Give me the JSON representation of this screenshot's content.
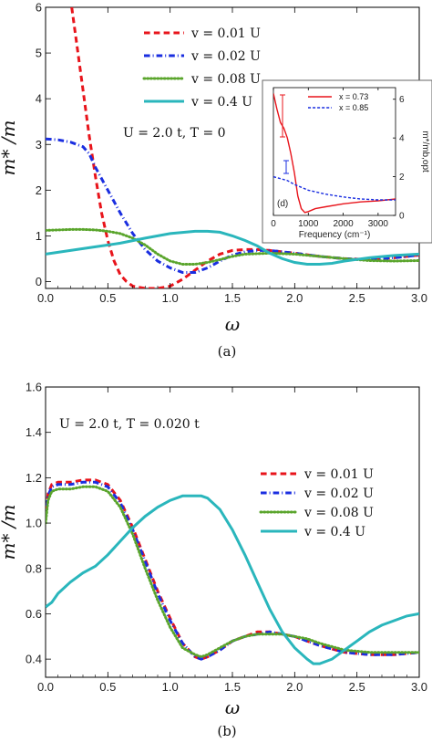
{
  "chart_data": [
    {
      "type": "line",
      "panel_label": "(a)",
      "xlabel": "ω",
      "ylabel": "m* /m",
      "xlim": [
        0,
        3.0
      ],
      "ylim": [
        -0.15,
        6
      ],
      "xticks": [
        "0.0",
        "0.5",
        "1.0",
        "1.5",
        "2.0",
        "2.5",
        "3.0"
      ],
      "yticks": [
        "0",
        "1",
        "2",
        "3",
        "4",
        "5",
        "6"
      ],
      "annotation": "U = 2.0 t, T = 0",
      "legend_position": "top-right",
      "series": [
        {
          "name": "v = 0.01 U",
          "color": "#e8141b",
          "dash": "dashed",
          "x": [
            0.21,
            0.25,
            0.3,
            0.35,
            0.4,
            0.45,
            0.5,
            0.55,
            0.6,
            0.65,
            0.7,
            0.8,
            0.9,
            1.0,
            1.1,
            1.2,
            1.3,
            1.4,
            1.5,
            1.6,
            1.7,
            1.8,
            2.0,
            2.2,
            2.4,
            2.6,
            2.8,
            3.0
          ],
          "y": [
            6.0,
            5.2,
            4.2,
            3.2,
            2.3,
            1.5,
            0.9,
            0.45,
            0.15,
            0.0,
            -0.1,
            -0.15,
            -0.15,
            -0.1,
            0.05,
            0.25,
            0.45,
            0.6,
            0.68,
            0.7,
            0.7,
            0.68,
            0.62,
            0.55,
            0.5,
            0.48,
            0.52,
            0.58
          ]
        },
        {
          "name": "v = 0.02 U",
          "color": "#1a2ee0",
          "dash": "dashdot",
          "x": [
            0.0,
            0.1,
            0.2,
            0.3,
            0.35,
            0.4,
            0.5,
            0.6,
            0.7,
            0.8,
            0.9,
            1.0,
            1.1,
            1.2,
            1.3,
            1.4,
            1.5,
            1.6,
            1.7,
            1.8,
            2.0,
            2.2,
            2.4,
            2.6,
            2.8,
            3.0
          ],
          "y": [
            3.12,
            3.1,
            3.05,
            2.95,
            2.8,
            2.5,
            2.0,
            1.5,
            1.05,
            0.7,
            0.45,
            0.3,
            0.2,
            0.2,
            0.3,
            0.45,
            0.58,
            0.65,
            0.68,
            0.68,
            0.62,
            0.55,
            0.5,
            0.48,
            0.52,
            0.58
          ]
        },
        {
          "name": "v = 0.08 U",
          "color": "#5aa52c",
          "dash": "dotted",
          "x": [
            0.0,
            0.1,
            0.2,
            0.3,
            0.4,
            0.5,
            0.6,
            0.7,
            0.8,
            0.9,
            1.0,
            1.1,
            1.2,
            1.3,
            1.4,
            1.5,
            1.6,
            1.8,
            2.0,
            2.2,
            2.4,
            2.6,
            2.8,
            3.0
          ],
          "y": [
            1.12,
            1.13,
            1.14,
            1.14,
            1.13,
            1.1,
            1.05,
            0.95,
            0.8,
            0.6,
            0.45,
            0.38,
            0.38,
            0.42,
            0.48,
            0.55,
            0.6,
            0.62,
            0.6,
            0.55,
            0.5,
            0.46,
            0.45,
            0.46
          ]
        },
        {
          "name": "v = 0.4 U",
          "color": "#2ab6bc",
          "dash": "solid",
          "x": [
            0.0,
            0.2,
            0.4,
            0.6,
            0.8,
            1.0,
            1.2,
            1.3,
            1.4,
            1.5,
            1.6,
            1.7,
            1.8,
            1.9,
            2.0,
            2.1,
            2.2,
            2.3,
            2.4,
            2.6,
            2.8,
            3.0
          ],
          "y": [
            0.6,
            0.68,
            0.76,
            0.84,
            0.95,
            1.05,
            1.1,
            1.1,
            1.08,
            1.0,
            0.9,
            0.78,
            0.62,
            0.5,
            0.42,
            0.38,
            0.38,
            0.4,
            0.45,
            0.52,
            0.57,
            0.6
          ]
        }
      ],
      "inset": {
        "xlabel": "Frequency (cm⁻¹)",
        "ylabel": "m*/mb,opt",
        "xlim": [
          0,
          3500
        ],
        "ylim": [
          0,
          6.6
        ],
        "xticks": [
          "0",
          "1000",
          "2000",
          "3000"
        ],
        "yticks": [
          "0",
          "2",
          "4",
          "6"
        ],
        "panel_tag": "(d)",
        "legend_position": "top-right",
        "series": [
          {
            "name": "x = 0.73",
            "color": "#e8141b",
            "dash": "solid",
            "x": [
              0,
              100,
              200,
              300,
              400,
              500,
              600,
              700,
              800,
              900,
              1000,
              1200,
              1500,
              2000,
              2500,
              3000,
              3500
            ],
            "y": [
              6.3,
              5.5,
              4.8,
              4.5,
              4.0,
              3.2,
              2.2,
              1.0,
              0.35,
              0.15,
              0.2,
              0.35,
              0.45,
              0.6,
              0.7,
              0.75,
              0.85
            ]
          },
          {
            "name": "x = 0.85",
            "color": "#1a2ee0",
            "dash": "dashed",
            "x": [
              0,
              200,
              400,
              600,
              800,
              1000,
              1500,
              2000,
              2500,
              3000,
              3500
            ],
            "y": [
              2.0,
              1.9,
              1.8,
              1.6,
              1.45,
              1.3,
              1.1,
              0.95,
              0.85,
              0.8,
              0.8
            ]
          }
        ]
      }
    },
    {
      "type": "line",
      "panel_label": "(b)",
      "xlabel": "ω",
      "ylabel": "m* /m",
      "xlim": [
        0,
        3.0
      ],
      "ylim": [
        0.32,
        1.6
      ],
      "xticks": [
        "0.0",
        "0.5",
        "1.0",
        "1.5",
        "2.0",
        "2.5",
        "3.0"
      ],
      "yticks": [
        "0.4",
        "0.6",
        "0.8",
        "1.0",
        "1.2",
        "1.4",
        "1.6"
      ],
      "annotation": "U = 2.0 t, T = 0.020 t",
      "legend_position": "right",
      "series": [
        {
          "name": "v = 0.01 U",
          "color": "#e8141b",
          "dash": "dashed",
          "x": [
            0.0,
            0.02,
            0.05,
            0.1,
            0.2,
            0.3,
            0.4,
            0.5,
            0.6,
            0.7,
            0.8,
            0.9,
            1.0,
            1.1,
            1.2,
            1.25,
            1.3,
            1.4,
            1.5,
            1.6,
            1.7,
            1.8,
            1.9,
            2.0,
            2.1,
            2.2,
            2.4,
            2.6,
            2.8,
            3.0
          ],
          "y": [
            1.02,
            1.13,
            1.17,
            1.18,
            1.18,
            1.19,
            1.19,
            1.17,
            1.1,
            0.98,
            0.84,
            0.7,
            0.58,
            0.47,
            0.41,
            0.4,
            0.41,
            0.44,
            0.48,
            0.5,
            0.52,
            0.52,
            0.51,
            0.5,
            0.48,
            0.46,
            0.43,
            0.42,
            0.42,
            0.43
          ]
        },
        {
          "name": "v = 0.02 U",
          "color": "#1a2ee0",
          "dash": "dashdot",
          "x": [
            0.0,
            0.02,
            0.05,
            0.1,
            0.2,
            0.3,
            0.4,
            0.5,
            0.6,
            0.7,
            0.8,
            0.9,
            1.0,
            1.1,
            1.2,
            1.25,
            1.3,
            1.4,
            1.5,
            1.6,
            1.7,
            1.8,
            1.9,
            2.0,
            2.1,
            2.2,
            2.4,
            2.6,
            2.8,
            3.0
          ],
          "y": [
            1.02,
            1.12,
            1.16,
            1.17,
            1.17,
            1.18,
            1.18,
            1.16,
            1.09,
            0.97,
            0.83,
            0.69,
            0.57,
            0.47,
            0.41,
            0.4,
            0.41,
            0.44,
            0.48,
            0.5,
            0.51,
            0.52,
            0.51,
            0.5,
            0.48,
            0.46,
            0.43,
            0.42,
            0.42,
            0.43
          ]
        },
        {
          "name": "v = 0.08 U",
          "color": "#5aa52c",
          "dash": "dotted",
          "x": [
            0.0,
            0.02,
            0.05,
            0.1,
            0.2,
            0.3,
            0.4,
            0.5,
            0.6,
            0.7,
            0.8,
            0.9,
            1.0,
            1.1,
            1.2,
            1.25,
            1.3,
            1.4,
            1.5,
            1.6,
            1.7,
            1.8,
            1.9,
            2.0,
            2.1,
            2.2,
            2.4,
            2.6,
            2.8,
            3.0
          ],
          "y": [
            1.0,
            1.1,
            1.14,
            1.15,
            1.15,
            1.16,
            1.16,
            1.14,
            1.07,
            0.95,
            0.8,
            0.66,
            0.54,
            0.45,
            0.42,
            0.41,
            0.42,
            0.45,
            0.48,
            0.5,
            0.51,
            0.51,
            0.51,
            0.5,
            0.49,
            0.47,
            0.44,
            0.43,
            0.43,
            0.43
          ]
        },
        {
          "name": "v = 0.4 U",
          "color": "#2ab6bc",
          "dash": "solid",
          "x": [
            0.0,
            0.05,
            0.1,
            0.2,
            0.3,
            0.4,
            0.5,
            0.6,
            0.7,
            0.8,
            0.9,
            1.0,
            1.1,
            1.2,
            1.25,
            1.3,
            1.4,
            1.5,
            1.6,
            1.7,
            1.8,
            1.9,
            2.0,
            2.1,
            2.15,
            2.2,
            2.3,
            2.4,
            2.5,
            2.6,
            2.7,
            2.8,
            2.9,
            3.0
          ],
          "y": [
            0.63,
            0.65,
            0.69,
            0.74,
            0.78,
            0.81,
            0.86,
            0.92,
            0.98,
            1.03,
            1.07,
            1.1,
            1.12,
            1.12,
            1.12,
            1.11,
            1.06,
            0.97,
            0.86,
            0.74,
            0.62,
            0.52,
            0.45,
            0.4,
            0.38,
            0.38,
            0.4,
            0.44,
            0.48,
            0.52,
            0.55,
            0.57,
            0.59,
            0.6
          ]
        }
      ]
    }
  ]
}
